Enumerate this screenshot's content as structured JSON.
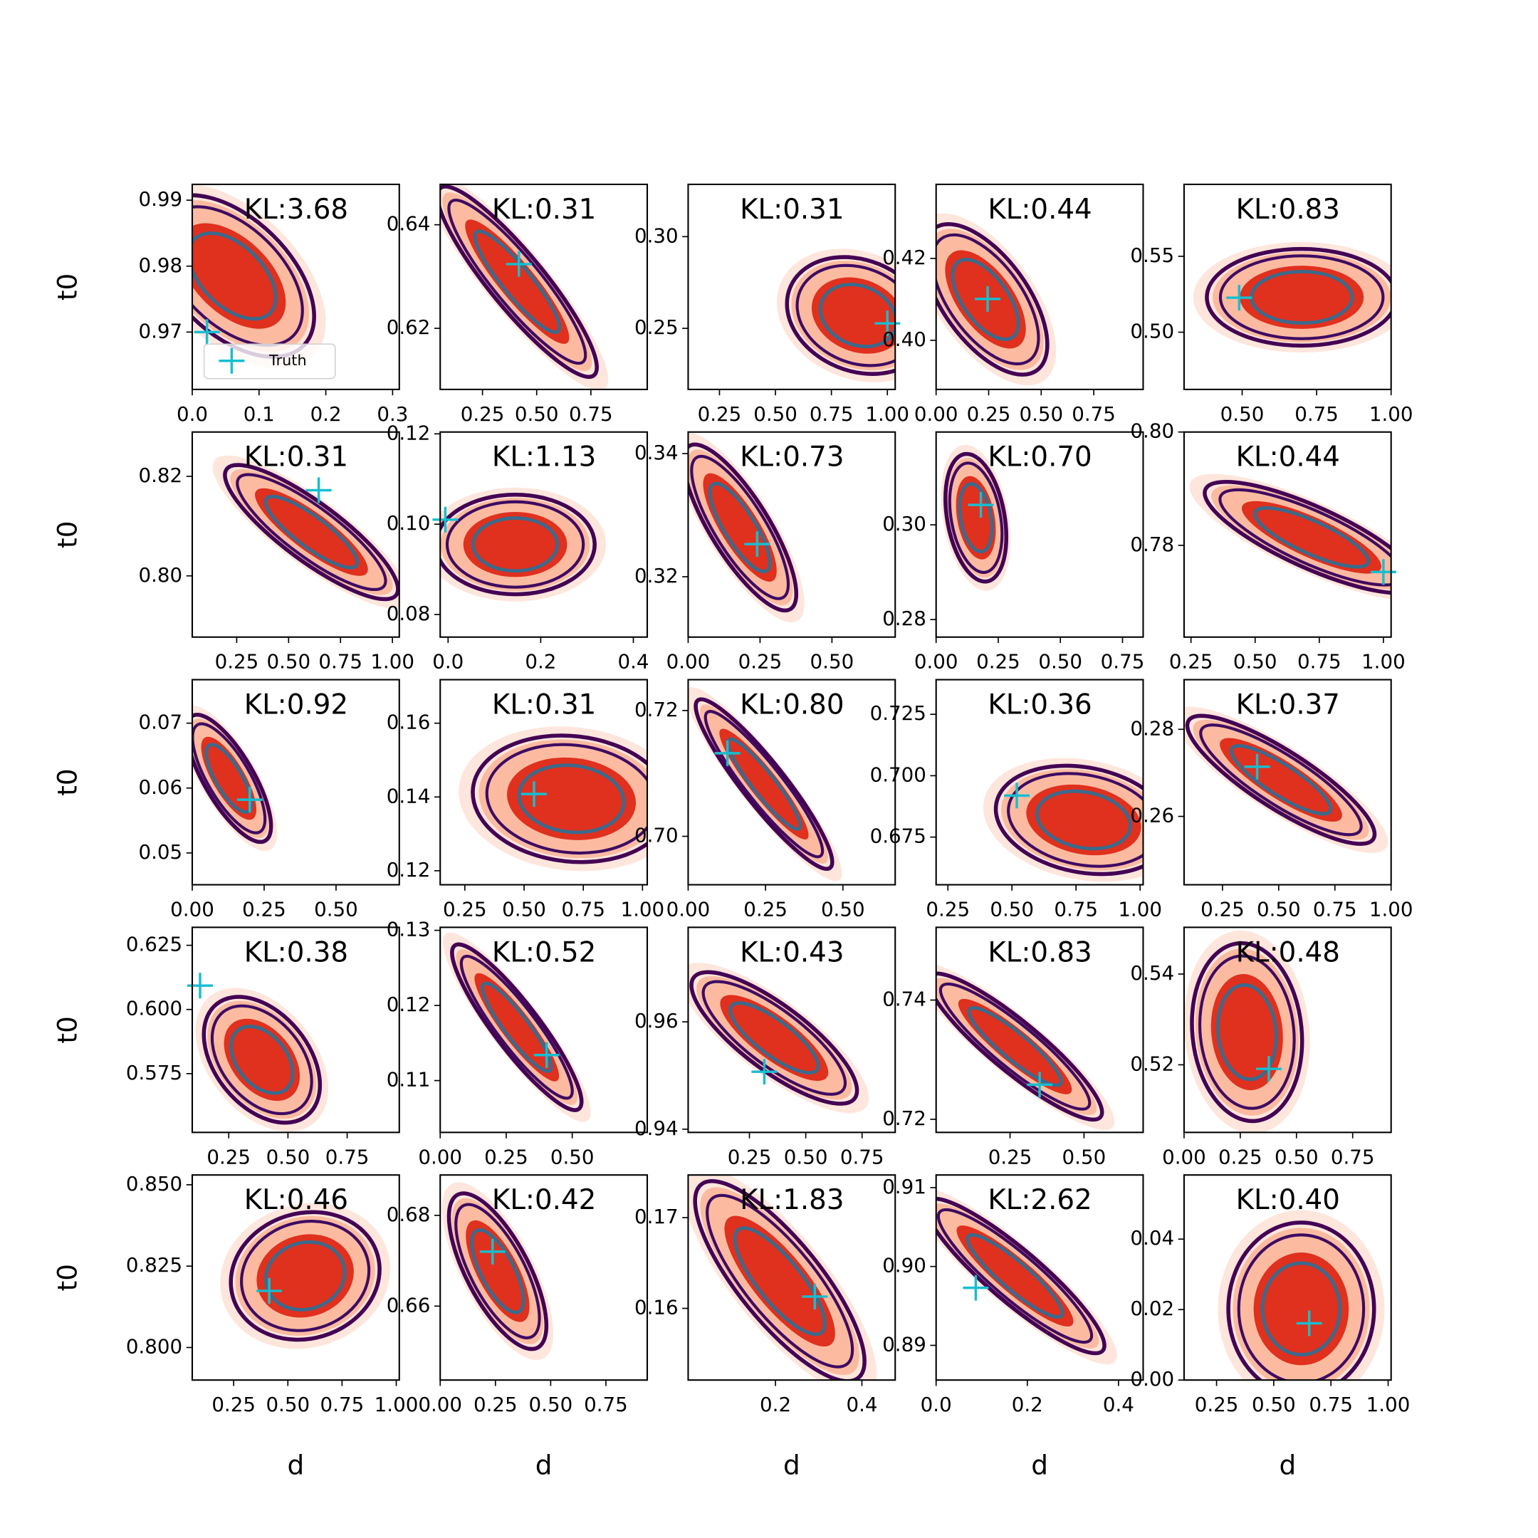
{
  "chart_data": [
    {
      "type": "kde",
      "title": "KL:3.68",
      "ylabel": "t0",
      "xlim": [
        0,
        0.31
      ],
      "ylim": [
        0.9613,
        0.9924
      ],
      "xticks": [
        {
          "value": 0,
          "label": "0.0"
        },
        0.1,
        0.2,
        0.3
      ],
      "yticks": [
        0.97,
        0.98,
        0.99
      ],
      "density": {
        "mean": [
          0.06,
          0.9785
        ],
        "sd": [
          0.05,
          0.005
        ],
        "corr": -0.5
      },
      "truth": [
        0.022,
        0.97
      ],
      "truth_color": "#17becf",
      "legend": {
        "label": "Truth",
        "loc": "lower left"
      }
    },
    {
      "type": "kde",
      "title": "KL:0.31",
      "xlim": [
        0.055,
        1.01
      ],
      "ylim": [
        0.6082,
        0.6478
      ],
      "xticks": [
        0.25,
        {
          "value": 0.5,
          "label": "0.50"
        },
        0.75
      ],
      "yticks": [
        0.62,
        0.64
      ],
      "density": {
        "mean": [
          0.41,
          0.629
        ],
        "sd": [
          0.15,
          0.0075
        ],
        "corr": -0.9
      },
      "truth": [
        0.418,
        0.6324
      ],
      "truth_color": "#17becf"
    },
    {
      "type": "kde",
      "title": "KL:0.31",
      "xlim": [
        0.11,
        1.035
      ],
      "ylim": [
        0.2167,
        0.3285
      ],
      "xticks": [
        0.25,
        {
          "value": 0.5,
          "label": "0.50"
        },
        0.75,
        {
          "value": 1,
          "label": "1.00"
        }
      ],
      "yticks": [
        0.25,
        {
          "value": 0.3,
          "label": "0.30"
        }
      ],
      "density": {
        "mean": [
          0.87,
          0.257
        ],
        "sd": [
          0.13,
          0.013
        ],
        "corr": -0.2
      },
      "truth": [
        1.0,
        0.2527
      ],
      "truth_color": "#17becf"
    },
    {
      "type": "kde",
      "title": "KL:0.44",
      "xlim": [
        0,
        0.985
      ],
      "ylim": [
        0.388,
        0.4381
      ],
      "xticks": [
        {
          "value": 0,
          "label": "0.00"
        },
        0.25,
        {
          "value": 0.5,
          "label": "0.50"
        },
        0.75
      ],
      "yticks": [
        {
          "value": 0.4,
          "label": "0.40"
        },
        0.42
      ],
      "density": {
        "mean": [
          0.235,
          0.41
        ],
        "sd": [
          0.12,
          0.0075
        ],
        "corr": -0.6
      },
      "truth": [
        0.245,
        0.4101
      ],
      "truth_color": "#17becf"
    },
    {
      "type": "kde",
      "title": "KL:0.83",
      "xlim": [
        0.305,
        1.0
      ],
      "ylim": [
        0.4623,
        0.5974
      ],
      "xticks": [
        {
          "value": 0.5,
          "label": "0.50"
        },
        0.75,
        {
          "value": 1,
          "label": "1.00"
        }
      ],
      "yticks": [
        {
          "value": 0.5,
          "label": "0.50"
        },
        0.55
      ],
      "density": {
        "mean": [
          0.7,
          0.523
        ],
        "sd": [
          0.13,
          0.013
        ],
        "corr": 0
      },
      "truth": [
        0.49,
        0.5227
      ],
      "truth_color": "#17becf"
    },
    {
      "type": "kde",
      "title": "KL:0.31",
      "ylabel": "t0",
      "xlim": [
        0.036,
        1.033
      ],
      "ylim": [
        0.7877,
        0.8289
      ],
      "xticks": [
        0.25,
        {
          "value": 0.5,
          "label": "0.50"
        },
        0.75,
        {
          "value": 1,
          "label": "1.00"
        }
      ],
      "yticks": [
        {
          "value": 0.8,
          "label": "0.80"
        },
        0.82
      ],
      "density": {
        "mean": [
          0.61,
          0.8088
        ],
        "sd": [
          0.17,
          0.0055
        ],
        "corr": -0.85
      },
      "truth": [
        0.645,
        0.8172
      ],
      "truth_color": "#17becf"
    },
    {
      "type": "kde",
      "title": "KL:1.13",
      "xlim": [
        -0.017,
        0.43
      ],
      "ylim": [
        0.075,
        0.1204
      ],
      "xticks": [
        {
          "value": 0,
          "label": "0.0"
        },
        0.2,
        0.4
      ],
      "yticks": [
        0.08,
        {
          "value": 0.1,
          "label": "0.10"
        },
        0.12
      ],
      "density": {
        "mean": [
          0.145,
          0.0955
        ],
        "sd": [
          0.07,
          0.0045
        ],
        "corr": 0
      },
      "truth": [
        -0.006,
        0.101
      ],
      "truth_color": "#17becf"
    },
    {
      "type": "kde",
      "title": "KL:0.73",
      "xlim": [
        0,
        0.72
      ],
      "ylim": [
        0.3102,
        0.3435
      ],
      "xticks": [
        {
          "value": 0,
          "label": "0.00"
        },
        0.25,
        {
          "value": 0.5,
          "label": "0.50"
        }
      ],
      "yticks": [
        0.32,
        0.34
      ],
      "density": {
        "mean": [
          0.18,
          0.328
        ],
        "sd": [
          0.08,
          0.0055
        ],
        "corr": -0.8
      },
      "truth": [
        0.24,
        0.3253
      ],
      "truth_color": "#17becf"
    },
    {
      "type": "kde",
      "title": "KL:0.70",
      "xlim": [
        0,
        0.833
      ],
      "ylim": [
        0.2763,
        0.3196
      ],
      "xticks": [
        {
          "value": 0,
          "label": "0.00"
        },
        0.25,
        {
          "value": 0.5,
          "label": "0.50"
        },
        0.75
      ],
      "yticks": [
        0.28,
        {
          "value": 0.3,
          "label": "0.30"
        }
      ],
      "density": {
        "mean": [
          0.16,
          0.3015
        ],
        "sd": [
          0.05,
          0.0055
        ],
        "corr": -0.3
      },
      "truth": [
        0.18,
        0.3042
      ],
      "truth_color": "#17becf"
    },
    {
      "type": "kde",
      "title": "KL:0.44",
      "xlim": [
        0.223,
        1.03
      ],
      "ylim": [
        0.7638,
        0.8
      ],
      "xticks": [
        0.25,
        {
          "value": 0.5,
          "label": "0.50"
        },
        0.75,
        {
          "value": 1,
          "label": "1.00"
        }
      ],
      "yticks": [
        0.78,
        {
          "value": 0.8,
          "label": "0.80"
        }
      ],
      "density": {
        "mean": [
          0.72,
          0.7814
        ],
        "sd": [
          0.17,
          0.004
        ],
        "corr": -0.8
      },
      "truth": [
        1.0,
        0.7753
      ],
      "truth_color": "#17becf"
    },
    {
      "type": "kde",
      "title": "KL:0.92",
      "ylabel": "t0",
      "xlim": [
        0,
        0.72
      ],
      "ylim": [
        0.0451,
        0.0767
      ],
      "xticks": [
        {
          "value": 0,
          "label": "0.00"
        },
        0.25,
        {
          "value": 0.5,
          "label": "0.50"
        }
      ],
      "yticks": [
        0.05,
        0.06,
        0.07
      ],
      "density": {
        "mean": [
          0.127,
          0.0615
        ],
        "sd": [
          0.06,
          0.004
        ],
        "corr": -0.75
      },
      "truth": [
        0.2,
        0.0582
      ],
      "truth_color": "#17becf"
    },
    {
      "type": "kde",
      "title": "KL:0.31",
      "xlim": [
        0.146,
        1.02
      ],
      "ylim": [
        0.1162,
        0.1718
      ],
      "xticks": [
        0.25,
        {
          "value": 0.5,
          "label": "0.50"
        },
        0.75,
        {
          "value": 1,
          "label": "1.00"
        }
      ],
      "yticks": [
        0.12,
        0.14,
        0.16
      ],
      "density": {
        "mean": [
          0.7,
          0.1395
        ],
        "sd": [
          0.17,
          0.007
        ],
        "corr": -0.1
      },
      "truth": [
        0.542,
        0.1408
      ],
      "truth_color": "#17becf"
    },
    {
      "type": "kde",
      "title": "KL:0.80",
      "xlim": [
        0,
        0.669
      ],
      "ylim": [
        0.6923,
        0.7249
      ],
      "xticks": [
        {
          "value": 0,
          "label": "0.00"
        },
        0.25,
        {
          "value": 0.5,
          "label": "0.50"
        }
      ],
      "yticks": [
        {
          "value": 0.7,
          "label": "0.70"
        },
        0.72
      ],
      "density": {
        "mean": [
          0.245,
          0.7083
        ],
        "sd": [
          0.09,
          0.0055
        ],
        "corr": -0.92
      },
      "truth": [
        0.127,
        0.7132
      ],
      "truth_color": "#17becf"
    },
    {
      "type": "kde",
      "title": "KL:0.36",
      "xlim": [
        0.204,
        1.012
      ],
      "ylim": [
        0.6556,
        0.7391
      ],
      "xticks": [
        0.25,
        {
          "value": 0.5,
          "label": "0.50"
        },
        0.75,
        {
          "value": 1,
          "label": "1.00"
        }
      ],
      "yticks": [
        0.675,
        {
          "value": 0.7,
          "label": "0.700"
        },
        0.725
      ],
      "density": {
        "mean": [
          0.78,
          0.682
        ],
        "sd": [
          0.14,
          0.009
        ],
        "corr": -0.2
      },
      "truth": [
        0.519,
        0.6919
      ],
      "truth_color": "#17becf"
    },
    {
      "type": "kde",
      "title": "KL:0.37",
      "xlim": [
        0.079,
        1.0
      ],
      "ylim": [
        0.2443,
        0.2914
      ],
      "xticks": [
        0.25,
        {
          "value": 0.5,
          "label": "0.50"
        },
        0.75,
        {
          "value": 1,
          "label": "1.00"
        }
      ],
      "yticks": [
        0.26,
        0.28
      ],
      "density": {
        "mean": [
          0.51,
          0.2684
        ],
        "sd": [
          0.17,
          0.006
        ],
        "corr": -0.85
      },
      "truth": [
        0.404,
        0.2714
      ],
      "truth_color": "#17becf"
    },
    {
      "type": "kde",
      "title": "KL:0.38",
      "ylabel": "t0",
      "xlim": [
        0.096,
        0.97
      ],
      "ylim": [
        0.5521,
        0.632
      ],
      "xticks": [
        0.25,
        {
          "value": 0.5,
          "label": "0.50"
        },
        0.75
      ],
      "yticks": [
        0.575,
        {
          "value": 0.6,
          "label": "0.600"
        },
        0.625
      ],
      "density": {
        "mean": [
          0.39,
          0.5804
        ],
        "sd": [
          0.1,
          0.01
        ],
        "corr": -0.4
      },
      "truth": [
        0.129,
        0.6093
      ],
      "truth_color": "#17becf"
    },
    {
      "type": "kde",
      "title": "KL:0.52",
      "xlim": [
        0,
        0.784
      ],
      "ylim": [
        0.1031,
        0.1304
      ],
      "xticks": [
        {
          "value": 0,
          "label": "0.00"
        },
        0.25,
        {
          "value": 0.5,
          "label": "0.50"
        }
      ],
      "yticks": [
        0.11,
        0.12,
        0.13
      ],
      "density": {
        "mean": [
          0.29,
          0.1171
        ],
        "sd": [
          0.1,
          0.0045
        ],
        "corr": -0.9
      },
      "truth": [
        0.403,
        0.1134
      ],
      "truth_color": "#17becf"
    },
    {
      "type": "kde",
      "title": "KL:0.43",
      "xlim": [
        -0.022,
        0.897
      ],
      "ylim": [
        0.9394,
        0.9776
      ],
      "xticks": [
        0.25,
        {
          "value": 0.5,
          "label": "0.50"
        },
        0.75
      ],
      "yticks": [
        0.94,
        0.96
      ],
      "density": {
        "mean": [
          0.36,
          0.957
        ],
        "sd": [
          0.15,
          0.005
        ],
        "corr": -0.8
      },
      "truth": [
        0.316,
        0.9507
      ],
      "truth_color": "#17becf"
    },
    {
      "type": "kde",
      "title": "KL:0.83",
      "xlim": [
        0,
        0.7
      ],
      "ylim": [
        0.7178,
        0.7522
      ],
      "xticks": [
        0.25,
        {
          "value": 0.5,
          "label": "0.50"
        }
      ],
      "yticks": [
        0.72,
        0.74
      ],
      "density": {
        "mean": [
          0.267,
          0.7322
        ],
        "sd": [
          0.12,
          0.005
        ],
        "corr": -0.9
      },
      "truth": [
        0.35,
        0.7258
      ],
      "truth_color": "#17becf"
    },
    {
      "type": "kde",
      "title": "KL:0.48",
      "xlim": [
        0,
        0.921
      ],
      "ylim": [
        0.5051,
        0.5503
      ],
      "xticks": [
        {
          "value": 0,
          "label": "0.00"
        },
        0.25,
        {
          "value": 0.5,
          "label": "0.50"
        },
        0.75
      ],
      "yticks": [
        0.52,
        0.54
      ],
      "density": {
        "mean": [
          0.28,
          0.5272
        ],
        "sd": [
          0.1,
          0.008
        ],
        "corr": -0.1
      },
      "truth": [
        0.377,
        0.5191
      ],
      "truth_color": "#17becf"
    },
    {
      "type": "kde",
      "title": "KL:0.46",
      "ylabel": "t0",
      "xlabel": "d",
      "xlim": [
        0.059,
        1.014
      ],
      "ylim": [
        0.79,
        0.853
      ],
      "xticks": [
        0.25,
        {
          "value": 0.5,
          "label": "0.50"
        },
        0.75,
        {
          "value": 1,
          "label": "1.00"
        }
      ],
      "yticks": [
        {
          "value": 0.8,
          "label": "0.800"
        },
        0.825,
        {
          "value": 0.85,
          "label": "0.850"
        }
      ],
      "density": {
        "mean": [
          0.58,
          0.822
        ],
        "sd": [
          0.14,
          0.008
        ],
        "corr": 0.1
      },
      "truth": [
        0.414,
        0.8174
      ],
      "truth_color": "#17becf"
    },
    {
      "type": "kde",
      "title": "KL:0.42",
      "xlabel": "d",
      "xlim": [
        0,
        0.937
      ],
      "ylim": [
        0.6437,
        0.6889
      ],
      "xticks": [
        {
          "value": 0,
          "label": "0.00"
        },
        0.25,
        {
          "value": 0.5,
          "label": "0.50"
        },
        0.75
      ],
      "yticks": [
        0.66,
        0.68
      ],
      "density": {
        "mean": [
          0.26,
          0.6677
        ],
        "sd": [
          0.09,
          0.007
        ],
        "corr": -0.7
      },
      "truth": [
        0.237,
        0.672
      ],
      "truth_color": "#17becf"
    },
    {
      "type": "kde",
      "title": "KL:1.83",
      "xlabel": "d",
      "xlim": [
        -0.002,
        0.477
      ],
      "ylim": [
        0.1521,
        0.1747
      ],
      "xticks": [
        0.2,
        0.4
      ],
      "yticks": [
        0.16,
        0.17
      ],
      "density": {
        "mean": [
          0.21,
          0.163
        ],
        "sd": [
          0.08,
          0.0045
        ],
        "corr": -0.8
      },
      "truth": [
        0.291,
        0.1613
      ],
      "truth_color": "#17becf"
    },
    {
      "type": "kde",
      "title": "KL:2.62",
      "xlabel": "d",
      "xlim": [
        0,
        0.454
      ],
      "ylim": [
        0.8856,
        0.9116
      ],
      "xticks": [
        {
          "value": 0,
          "label": "0.0"
        },
        0.2,
        0.4
      ],
      "yticks": [
        0.89,
        {
          "value": 0.9,
          "label": "0.90"
        },
        0.91
      ],
      "density": {
        "mean": [
          0.173,
          0.8988
        ],
        "sd": [
          0.08,
          0.004
        ],
        "corr": -0.9
      },
      "truth": [
        0.087,
        0.8973
      ],
      "truth_color": "#17becf"
    },
    {
      "type": "kde",
      "title": "KL:0.40",
      "xlabel": "d",
      "xlim": [
        0.108,
        1.013
      ],
      "ylim": [
        0,
        0.0582
      ],
      "xticks": [
        0.25,
        {
          "value": 0.5,
          "label": "0.50"
        },
        0.75,
        {
          "value": 1,
          "label": "1.00"
        }
      ],
      "yticks": [
        {
          "value": 0,
          "label": "0.00"
        },
        0.02,
        0.04
      ],
      "density": {
        "mean": [
          0.62,
          0.0202
        ],
        "sd": [
          0.13,
          0.01
        ],
        "corr": 0
      },
      "truth": [
        0.655,
        0.0161
      ],
      "truth_color": "#17becf"
    }
  ]
}
